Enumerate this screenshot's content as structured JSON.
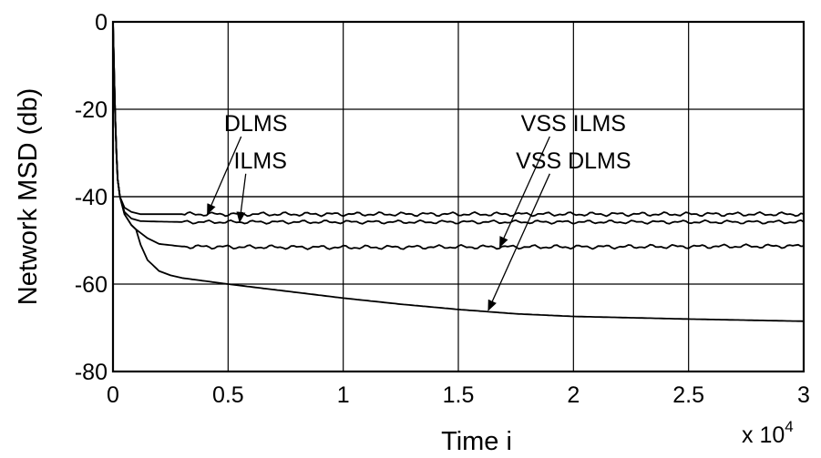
{
  "chart_data": {
    "type": "line",
    "title": "",
    "xlabel": "Time i",
    "ylabel": "Network MSD (db)",
    "x_multiplier": {
      "base": "x 10",
      "exponent": "4"
    },
    "xlim": [
      0,
      3
    ],
    "ylim": [
      -80,
      0
    ],
    "xticks": [
      0,
      0.5,
      1,
      1.5,
      2,
      2.5,
      3
    ],
    "xtick_labels": [
      "0",
      "0.5",
      "1",
      "1.5",
      "2",
      "2.5",
      "3"
    ],
    "yticks": [
      0,
      -20,
      -40,
      -60,
      -80
    ],
    "ytick_labels": [
      "0",
      "-20",
      "-40",
      "-60",
      "-80"
    ],
    "grid": true,
    "legend": null,
    "series": [
      {
        "name": "DLMS",
        "x": [
          0,
          0.005,
          0.01,
          0.015,
          0.02,
          0.03,
          0.05,
          0.08,
          0.12,
          0.2,
          0.3,
          0.5,
          1,
          1.5,
          2,
          2.5,
          3
        ],
        "y": [
          0,
          -12,
          -22,
          -30,
          -36,
          -40,
          -42.5,
          -43.5,
          -44,
          -44,
          -44,
          -44,
          -44,
          -44,
          -44,
          -44,
          -44
        ],
        "ripple": 0.4
      },
      {
        "name": "ILMS",
        "x": [
          0,
          0.005,
          0.01,
          0.015,
          0.02,
          0.03,
          0.05,
          0.08,
          0.12,
          0.2,
          0.3,
          0.5,
          1,
          1.5,
          2,
          2.5,
          3
        ],
        "y": [
          0,
          -12,
          -22,
          -30,
          -36,
          -40,
          -43.5,
          -45,
          -45.6,
          -45.7,
          -45.8,
          -45.8,
          -45.8,
          -45.8,
          -45.8,
          -45.8,
          -45.8
        ],
        "ripple": 0.35
      },
      {
        "name": "VSS ILMS",
        "x": [
          0,
          0.005,
          0.01,
          0.015,
          0.02,
          0.03,
          0.05,
          0.08,
          0.1,
          0.12,
          0.15,
          0.2,
          0.3,
          0.5,
          1,
          1.5,
          2,
          2.5,
          3
        ],
        "y": [
          0,
          -12,
          -22,
          -30,
          -36,
          -40,
          -44,
          -46.5,
          -47.5,
          -48.3,
          -49.5,
          -50.8,
          -51.4,
          -51.5,
          -51.6,
          -51.5,
          -51.5,
          -51.4,
          -51.3
        ],
        "ripple": 0.4
      },
      {
        "name": "VSS DLMS",
        "x": [
          0,
          0.005,
          0.01,
          0.015,
          0.02,
          0.03,
          0.05,
          0.08,
          0.1,
          0.12,
          0.15,
          0.2,
          0.25,
          0.3,
          0.4,
          0.5,
          0.75,
          1,
          1.25,
          1.5,
          1.75,
          2,
          2.5,
          3
        ],
        "y": [
          0,
          -12,
          -22,
          -30,
          -36,
          -40,
          -44,
          -46.5,
          -47.5,
          -51,
          -54.5,
          -57,
          -58,
          -58.6,
          -59.3,
          -60,
          -61.6,
          -63.2,
          -64.6,
          -65.8,
          -66.8,
          -67.4,
          -68,
          -68.5
        ],
        "ripple": 0
      }
    ],
    "annotations": [
      {
        "text": "DLMS",
        "text_x": 0.62,
        "text_y": -25,
        "arrow_to_x": 0.41,
        "arrow_to_y": -44
      },
      {
        "text": "ILMS",
        "text_x": 0.64,
        "text_y": -33.5,
        "arrow_to_x": 0.55,
        "arrow_to_y": -45.8
      },
      {
        "text": "VSS ILMS",
        "text_x": 2.0,
        "text_y": -25,
        "arrow_to_x": 1.68,
        "arrow_to_y": -51.5
      },
      {
        "text": "VSS DLMS",
        "text_x": 2.0,
        "text_y": -33.5,
        "arrow_to_x": 1.63,
        "arrow_to_y": -66
      }
    ]
  }
}
